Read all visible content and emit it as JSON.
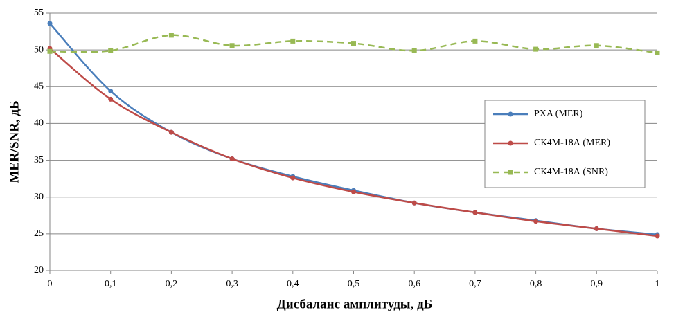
{
  "chart_data": {
    "type": "line",
    "xlabel": "Дисбаланс амплитуды, дБ",
    "ylabel": "MER/SNR,  дБ",
    "x": [
      0,
      0.1,
      0.2,
      0.3,
      0.4,
      0.5,
      0.6,
      0.7,
      0.8,
      0.9,
      1
    ],
    "series": [
      {
        "name": "PXA (MER)",
        "color": "#4a7ebb",
        "marker": "circle",
        "dash": false,
        "values": [
          53.6,
          44.4,
          38.8,
          35.2,
          32.8,
          30.9,
          29.2,
          27.9,
          26.8,
          25.7,
          24.9
        ]
      },
      {
        "name": "СК4М-18А (MER)",
        "color": "#be4b48",
        "marker": "circle",
        "dash": false,
        "values": [
          50.2,
          43.3,
          38.8,
          35.2,
          32.6,
          30.7,
          29.2,
          27.9,
          26.7,
          25.7,
          24.7
        ]
      },
      {
        "name": "СК4М-18А (SNR)",
        "color": "#98b954",
        "marker": "square",
        "dash": true,
        "values": [
          49.8,
          49.9,
          52.0,
          50.6,
          51.2,
          50.9,
          49.9,
          51.2,
          50.1,
          50.6,
          49.6
        ]
      }
    ],
    "xlim": [
      0,
      1
    ],
    "xticks": [
      0,
      {
        "value": 0.1,
        "label": "0,1"
      },
      {
        "value": 0.2,
        "label": "0,2"
      },
      {
        "value": 0.3,
        "label": "0,3"
      },
      {
        "value": 0.4,
        "label": "0,4"
      },
      {
        "value": 0.5,
        "label": "0,5"
      },
      {
        "value": 0.6,
        "label": "0,6"
      },
      {
        "value": 0.7,
        "label": "0,7"
      },
      {
        "value": 0.8,
        "label": "0,8"
      },
      {
        "value": 0.9,
        "label": "0,9"
      },
      1
    ],
    "ylim": [
      20,
      55
    ],
    "yticks": [
      20,
      25,
      30,
      35,
      40,
      45,
      50,
      55
    ],
    "grid": true,
    "legend": "right"
  }
}
